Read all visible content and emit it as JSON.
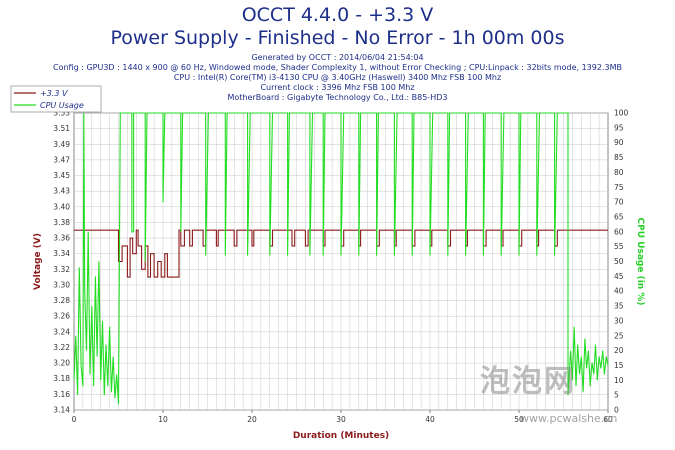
{
  "header": {
    "title1": "OCCT 4.4.0 - +3.3 V",
    "title2": "Power Supply - Finished - No Error - 1h 00m 00s",
    "generated": "Generated by OCCT : 2014/06/04 21:54:04",
    "config": "Config : GPU3D : 1440 x 900 @ 60 Hz, Windowed mode, Shader Complexity 1, without Error Checking ; CPU:Linpack : 32bits mode, 1392.3MB",
    "cpu": "CPU : Intel(R) Core(TM) i3-4130 CPU @ 3.40GHz (Haswell) 3400 Mhz FSB 100 Mhz",
    "clock": "Current clock : 3396 Mhz FSB 100 Mhz",
    "motherboard": "MotherBoard : Gigabyte Technology Co., Ltd.: B85-HD3"
  },
  "watermark": {
    "logo": "泡泡网",
    "url": "www.pcwalshe.cn"
  },
  "colors": {
    "voltage": "#8b1a1a",
    "cpu": "#22dd22",
    "text": "#1e2f8a",
    "grid": "#c8c8c8"
  },
  "chart_data": {
    "type": "line",
    "xlabel": "Duration (Minutes)",
    "ylabel_left": "Voltage (V)",
    "ylabel_right": "CPU Usage (in %)",
    "xlim": [
      0,
      60
    ],
    "x_ticks": [
      0,
      10,
      20,
      30,
      40,
      50,
      60
    ],
    "ylim_left": [
      3.14,
      3.52
    ],
    "y_ticks_left": [
      "3.14",
      "3.16",
      "3.18",
      "3.20",
      "3.22",
      "3.24",
      "3.26",
      "3.28",
      "3.30",
      "3.32",
      "3.34",
      "3.36",
      "3.38",
      "3.40",
      "3.43",
      "3.45",
      "3.47",
      "3.49",
      "3.51",
      "3.53"
    ],
    "ylim_right": [
      0,
      100
    ],
    "y_ticks_right": [
      0,
      5,
      10,
      15,
      20,
      25,
      30,
      35,
      40,
      45,
      50,
      55,
      60,
      65,
      70,
      75,
      80,
      85,
      90,
      95,
      100
    ],
    "legend": [
      "+3.3 V",
      "CPU Usage"
    ],
    "series": [
      {
        "name": "+3.3 V",
        "axis": "left",
        "points": [
          [
            0,
            3.37
          ],
          [
            5,
            3.37
          ],
          [
            5,
            3.33
          ],
          [
            5.4,
            3.33
          ],
          [
            5.4,
            3.35
          ],
          [
            6,
            3.35
          ],
          [
            6,
            3.31
          ],
          [
            6.3,
            3.31
          ],
          [
            6.3,
            3.36
          ],
          [
            6.6,
            3.36
          ],
          [
            6.6,
            3.34
          ],
          [
            7,
            3.34
          ],
          [
            7,
            3.37
          ],
          [
            7.2,
            3.37
          ],
          [
            7.2,
            3.35
          ],
          [
            7.6,
            3.35
          ],
          [
            7.6,
            3.32
          ],
          [
            8,
            3.32
          ],
          [
            8,
            3.35
          ],
          [
            8.3,
            3.35
          ],
          [
            8.3,
            3.31
          ],
          [
            8.6,
            3.31
          ],
          [
            8.6,
            3.34
          ],
          [
            9,
            3.34
          ],
          [
            9,
            3.31
          ],
          [
            9.4,
            3.31
          ],
          [
            9.4,
            3.33
          ],
          [
            9.8,
            3.33
          ],
          [
            9.8,
            3.31
          ],
          [
            10.2,
            3.31
          ],
          [
            10.2,
            3.34
          ],
          [
            10.5,
            3.34
          ],
          [
            10.5,
            3.31
          ],
          [
            11.8,
            3.31
          ],
          [
            11.8,
            3.37
          ],
          [
            12,
            3.37
          ],
          [
            12,
            3.35
          ],
          [
            12.4,
            3.35
          ],
          [
            12.4,
            3.37
          ],
          [
            13,
            3.37
          ],
          [
            13,
            3.35
          ],
          [
            13.3,
            3.35
          ],
          [
            13.3,
            3.37
          ],
          [
            14.5,
            3.37
          ],
          [
            14.5,
            3.35
          ],
          [
            14.8,
            3.35
          ],
          [
            14.8,
            3.37
          ],
          [
            16,
            3.37
          ],
          [
            16,
            3.35
          ],
          [
            16.2,
            3.35
          ],
          [
            16.2,
            3.37
          ],
          [
            18,
            3.37
          ],
          [
            18,
            3.35
          ],
          [
            18.3,
            3.35
          ],
          [
            18.3,
            3.37
          ],
          [
            20,
            3.37
          ],
          [
            20,
            3.35
          ],
          [
            20.2,
            3.35
          ],
          [
            20.2,
            3.37
          ],
          [
            22,
            3.37
          ],
          [
            22,
            3.35
          ],
          [
            22.3,
            3.35
          ],
          [
            22.3,
            3.37
          ],
          [
            24.5,
            3.37
          ],
          [
            24.5,
            3.35
          ],
          [
            24.8,
            3.35
          ],
          [
            24.8,
            3.37
          ],
          [
            26,
            3.37
          ],
          [
            26,
            3.35
          ],
          [
            26.3,
            3.35
          ],
          [
            26.3,
            3.37
          ],
          [
            28,
            3.37
          ],
          [
            28,
            3.35
          ],
          [
            28.2,
            3.35
          ],
          [
            28.2,
            3.37
          ],
          [
            30,
            3.37
          ],
          [
            30,
            3.35
          ],
          [
            30.3,
            3.35
          ],
          [
            30.3,
            3.37
          ],
          [
            32,
            3.37
          ],
          [
            32,
            3.35
          ],
          [
            32.2,
            3.35
          ],
          [
            32.2,
            3.37
          ],
          [
            34,
            3.37
          ],
          [
            34,
            3.35
          ],
          [
            34.3,
            3.35
          ],
          [
            34.3,
            3.37
          ],
          [
            36,
            3.37
          ],
          [
            36,
            3.35
          ],
          [
            36.2,
            3.35
          ],
          [
            36.2,
            3.37
          ],
          [
            38,
            3.37
          ],
          [
            38,
            3.35
          ],
          [
            38.3,
            3.35
          ],
          [
            38.3,
            3.37
          ],
          [
            40,
            3.37
          ],
          [
            40,
            3.35
          ],
          [
            40.2,
            3.35
          ],
          [
            40.2,
            3.37
          ],
          [
            42,
            3.37
          ],
          [
            42,
            3.35
          ],
          [
            42.3,
            3.35
          ],
          [
            42.3,
            3.37
          ],
          [
            44,
            3.37
          ],
          [
            44,
            3.35
          ],
          [
            44.2,
            3.35
          ],
          [
            44.2,
            3.37
          ],
          [
            46,
            3.37
          ],
          [
            46,
            3.35
          ],
          [
            46.3,
            3.35
          ],
          [
            46.3,
            3.37
          ],
          [
            48,
            3.37
          ],
          [
            48,
            3.35
          ],
          [
            48.2,
            3.35
          ],
          [
            48.2,
            3.37
          ],
          [
            50,
            3.37
          ],
          [
            50,
            3.35
          ],
          [
            50.3,
            3.35
          ],
          [
            50.3,
            3.37
          ],
          [
            52,
            3.37
          ],
          [
            52,
            3.35
          ],
          [
            52.2,
            3.35
          ],
          [
            52.2,
            3.37
          ],
          [
            54,
            3.37
          ],
          [
            54,
            3.35
          ],
          [
            54.3,
            3.35
          ],
          [
            54.3,
            3.37
          ],
          [
            60,
            3.37
          ]
        ]
      },
      {
        "name": "CPU Usage",
        "axis": "right",
        "points": [
          [
            0,
            10
          ],
          [
            0.2,
            25
          ],
          [
            0.4,
            5
          ],
          [
            0.6,
            48
          ],
          [
            0.8,
            15
          ],
          [
            1,
            8
          ],
          [
            1.1,
            100
          ],
          [
            1.2,
            40
          ],
          [
            1.4,
            20
          ],
          [
            1.6,
            60
          ],
          [
            1.8,
            12
          ],
          [
            2,
            35
          ],
          [
            2.2,
            8
          ],
          [
            2.4,
            45
          ],
          [
            2.6,
            18
          ],
          [
            2.8,
            50
          ],
          [
            3,
            10
          ],
          [
            3.2,
            30
          ],
          [
            3.4,
            5
          ],
          [
            3.6,
            22
          ],
          [
            3.8,
            8
          ],
          [
            4,
            28
          ],
          [
            4.2,
            6
          ],
          [
            4.4,
            18
          ],
          [
            4.6,
            4
          ],
          [
            4.8,
            12
          ],
          [
            5,
            2
          ],
          [
            5.2,
            100
          ],
          [
            6.5,
            100
          ],
          [
            6.5,
            60
          ],
          [
            6.7,
            60
          ],
          [
            6.7,
            100
          ],
          [
            8,
            100
          ],
          [
            8,
            50
          ],
          [
            8.2,
            100
          ],
          [
            10,
            100
          ],
          [
            10,
            70
          ],
          [
            10.2,
            100
          ],
          [
            12,
            100
          ],
          [
            12,
            60
          ],
          [
            12.2,
            100
          ],
          [
            14.8,
            100
          ],
          [
            14.8,
            52
          ],
          [
            15.1,
            100
          ],
          [
            17,
            100
          ],
          [
            17,
            52
          ],
          [
            17.2,
            100
          ],
          [
            19.5,
            100
          ],
          [
            19.5,
            52
          ],
          [
            19.8,
            100
          ],
          [
            22,
            100
          ],
          [
            22,
            52
          ],
          [
            22.3,
            100
          ],
          [
            24,
            100
          ],
          [
            24,
            52
          ],
          [
            24.2,
            100
          ],
          [
            26.5,
            100
          ],
          [
            26.5,
            52
          ],
          [
            26.8,
            100
          ],
          [
            28,
            100
          ],
          [
            28,
            52
          ],
          [
            28.2,
            100
          ],
          [
            30,
            100
          ],
          [
            30,
            52
          ],
          [
            30.3,
            100
          ],
          [
            32,
            100
          ],
          [
            32,
            52
          ],
          [
            32.2,
            100
          ],
          [
            34,
            100
          ],
          [
            34,
            52
          ],
          [
            34.2,
            100
          ],
          [
            36,
            100
          ],
          [
            36,
            52
          ],
          [
            36.3,
            100
          ],
          [
            38,
            100
          ],
          [
            38,
            52
          ],
          [
            38.2,
            100
          ],
          [
            40,
            100
          ],
          [
            40,
            52
          ],
          [
            40.3,
            100
          ],
          [
            42,
            100
          ],
          [
            42,
            52
          ],
          [
            42.2,
            100
          ],
          [
            44,
            100
          ],
          [
            44,
            52
          ],
          [
            44.3,
            100
          ],
          [
            46,
            100
          ],
          [
            46,
            52
          ],
          [
            46.2,
            100
          ],
          [
            48,
            100
          ],
          [
            48,
            52
          ],
          [
            48.3,
            100
          ],
          [
            50,
            100
          ],
          [
            50,
            52
          ],
          [
            50.2,
            100
          ],
          [
            52,
            100
          ],
          [
            52,
            52
          ],
          [
            52.3,
            100
          ],
          [
            54,
            100
          ],
          [
            54,
            52
          ],
          [
            54.3,
            100
          ],
          [
            55.5,
            100
          ],
          [
            55.5,
            5
          ],
          [
            55.8,
            20
          ],
          [
            56,
            10
          ],
          [
            56.2,
            28
          ],
          [
            56.4,
            8
          ],
          [
            56.6,
            22
          ],
          [
            56.8,
            12
          ],
          [
            57,
            18
          ],
          [
            57.2,
            6
          ],
          [
            57.4,
            24
          ],
          [
            57.6,
            14
          ],
          [
            57.8,
            20
          ],
          [
            58,
            8
          ],
          [
            58.2,
            16
          ],
          [
            58.4,
            12
          ],
          [
            58.6,
            22
          ],
          [
            58.8,
            10
          ],
          [
            59,
            18
          ],
          [
            59.2,
            14
          ],
          [
            59.4,
            20
          ],
          [
            59.6,
            12
          ],
          [
            59.8,
            18
          ],
          [
            60,
            15
          ]
        ]
      }
    ]
  }
}
